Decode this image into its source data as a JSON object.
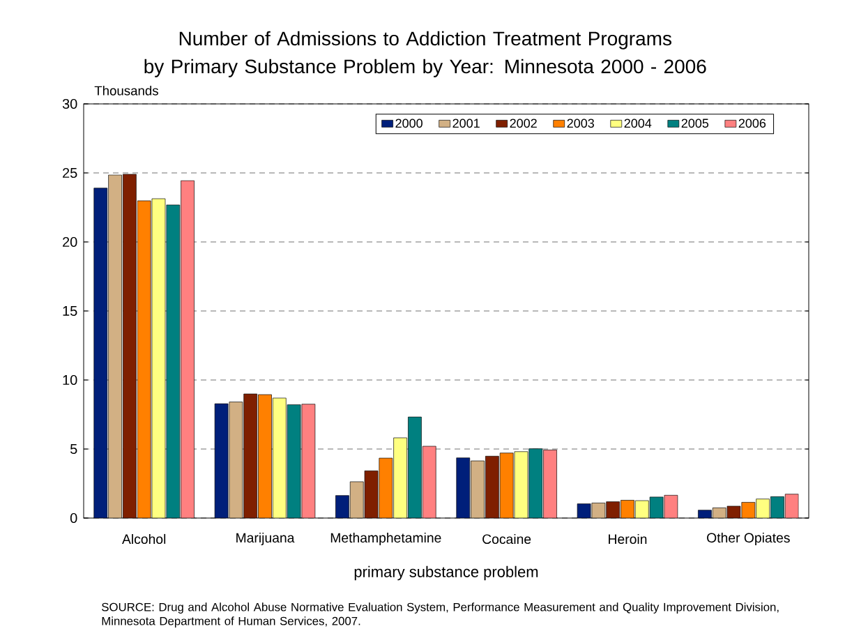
{
  "chart_data": {
    "type": "bar",
    "title": "Number of Admissions to Addiction Treatment Programs by Primary Substance Problem by Year: Minnesota 2000 - 2006",
    "ylabel": "Thousands",
    "xlabel": "primary substance problem",
    "categories": [
      "Alcohol",
      "Marijuana",
      "Methamphetamine",
      "Cocaine",
      "Heroin",
      "Other Opiates"
    ],
    "series": [
      {
        "name": "2000",
        "color": "#001f7a",
        "values": [
          23.9,
          8.28,
          1.63,
          4.36,
          1.03,
          0.57
        ]
      },
      {
        "name": "2001",
        "color": "#d2b084",
        "values": [
          24.85,
          8.41,
          2.63,
          4.14,
          1.09,
          0.74
        ]
      },
      {
        "name": "2002",
        "color": "#7f1f00",
        "values": [
          24.9,
          8.99,
          3.42,
          4.48,
          1.18,
          0.86
        ]
      },
      {
        "name": "2003",
        "color": "#ff8000",
        "values": [
          22.98,
          8.94,
          4.34,
          4.71,
          1.29,
          1.14
        ]
      },
      {
        "name": "2004",
        "color": "#ffff80",
        "values": [
          23.13,
          8.69,
          5.81,
          4.81,
          1.26,
          1.38
        ]
      },
      {
        "name": "2005",
        "color": "#008080",
        "values": [
          22.68,
          8.21,
          7.32,
          5.02,
          1.52,
          1.55
        ]
      },
      {
        "name": "2006",
        "color": "#ff8080",
        "values": [
          24.44,
          8.25,
          5.2,
          4.93,
          1.65,
          1.73
        ]
      }
    ],
    "ylim": [
      0,
      30
    ],
    "yticks": [
      0,
      5,
      10,
      15,
      20,
      25,
      30
    ],
    "grid": "y",
    "legend": "top right",
    "annotations": [
      "SOURCE: Drug and Alcohol Abuse Normative Evaluation System, Performance Measurement and Quality Improvement Division, Minnesota Department of Human Services, 2007."
    ]
  }
}
